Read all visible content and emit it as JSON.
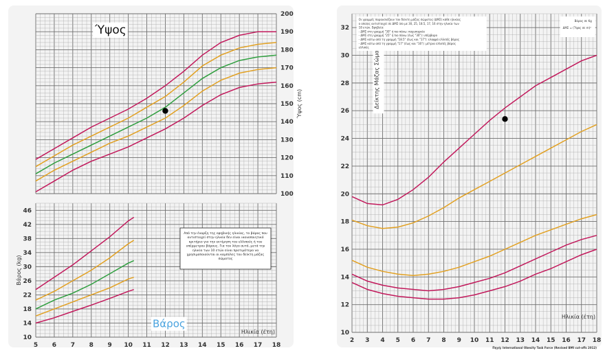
{
  "chart_data": [
    {
      "type": "line",
      "title": "Ύψος",
      "ylabel": "Ύψος (cm)",
      "xlim": [
        5,
        18
      ],
      "ylim": [
        100,
        200
      ],
      "x": [
        5,
        6,
        7,
        8,
        9,
        10,
        11,
        12,
        13,
        14,
        15,
        16,
        17,
        18
      ],
      "yticks": [
        100,
        110,
        120,
        130,
        140,
        150,
        160,
        170,
        180,
        190,
        200
      ],
      "series": [
        {
          "color": "#c2185b",
          "values": [
            119,
            125,
            131,
            137,
            142,
            147,
            153,
            160,
            168,
            177,
            184,
            188,
            190,
            190
          ]
        },
        {
          "color": "#e2a020",
          "values": [
            115,
            121,
            127,
            132,
            137,
            142,
            148,
            154,
            162,
            171,
            177,
            181,
            183,
            184
          ]
        },
        {
          "color": "#2e9e3e",
          "values": [
            111,
            117,
            122,
            127,
            132,
            137,
            142,
            148,
            156,
            164,
            170,
            174,
            176,
            177
          ]
        },
        {
          "color": "#e2a020",
          "values": [
            107,
            113,
            118,
            123,
            128,
            132,
            137,
            142,
            149,
            157,
            163,
            167,
            169,
            170
          ]
        },
        {
          "color": "#c2185b",
          "values": [
            101,
            107,
            113,
            118,
            122,
            126,
            131,
            136,
            142,
            149,
            155,
            159,
            161,
            162
          ]
        }
      ],
      "points": [
        {
          "x": 12,
          "y": 146
        }
      ]
    },
    {
      "type": "line",
      "title": "Βάρος",
      "xlabel": "Ηλικία (έτη)",
      "ylabel": "Βάρος (kg)",
      "xlim": [
        5,
        18
      ],
      "ylim": [
        10,
        48
      ],
      "x": [
        5,
        6,
        7,
        8,
        9,
        10,
        10.3
      ],
      "xticks": [
        5,
        6,
        7,
        8,
        9,
        10,
        11,
        12,
        13,
        14,
        15,
        16,
        17,
        18
      ],
      "yticks": [
        10,
        14,
        18,
        22,
        26,
        30,
        34,
        38,
        42,
        46
      ],
      "series": [
        {
          "color": "#c2185b",
          "values": [
            23.5,
            27,
            30.5,
            34.5,
            38.5,
            43,
            44
          ]
        },
        {
          "color": "#e2a020",
          "values": [
            20.5,
            23,
            26,
            29,
            32.5,
            36.5,
            37.5
          ]
        },
        {
          "color": "#2e9e3e",
          "values": [
            18,
            20.5,
            22.5,
            25,
            28,
            31,
            31.7
          ]
        },
        {
          "color": "#e2a020",
          "values": [
            16,
            18,
            20,
            22,
            24,
            26.5,
            27
          ]
        },
        {
          "color": "#c2185b",
          "values": [
            14,
            15.5,
            17.3,
            19.1,
            21,
            23,
            23.5
          ]
        }
      ],
      "note": "Από την έναρξη της εφηβικής ηλικίας, το βάρος που αντιστοιχεί στην ηλικία δεν είναι ικανοποιητικό κριτήριο για την εκτίμηση του ελλιπούς ή του υπέρμετρου βάρους. Για τον λόγο αυτό, μετά την ηλικία των 10 ετών είναι προτιμότερο να χρησιμοποιούνται οι καμπύλες του δείκτη μάζας σώματος"
    },
    {
      "type": "line",
      "ylabel": "Δείκτης Μάζας Σώματος",
      "xlabel": "Ηλικία (έτη)",
      "unit_label": "Βάρος σε Kg",
      "formula_label": "ΔΜΣ = (Ύψος σε m)²",
      "source": "Πηγή: International Obesity Task Force (Revised BMI cut-offs 2012)",
      "xlim": [
        2,
        18
      ],
      "ylim": [
        10,
        33
      ],
      "x": [
        2,
        3,
        4,
        5,
        6,
        7,
        8,
        9,
        10,
        11,
        12,
        13,
        14,
        15,
        16,
        17,
        18
      ],
      "xticks": [
        2,
        3,
        4,
        5,
        6,
        7,
        8,
        9,
        10,
        11,
        12,
        13,
        14,
        15,
        16,
        17,
        18
      ],
      "yticks": [
        10,
        12,
        14,
        16,
        18,
        20,
        22,
        24,
        26,
        28,
        30,
        32
      ],
      "series": [
        {
          "color": "#c2185b",
          "values": [
            19.8,
            19.3,
            19.2,
            19.6,
            20.3,
            21.2,
            22.3,
            23.3,
            24.3,
            25.3,
            26.2,
            27.0,
            27.8,
            28.4,
            29.0,
            29.6,
            30.0
          ]
        },
        {
          "color": "#e2a020",
          "values": [
            18.1,
            17.7,
            17.5,
            17.6,
            17.9,
            18.4,
            19.0,
            19.7,
            20.3,
            20.9,
            21.5,
            22.1,
            22.7,
            23.3,
            23.9,
            24.5,
            25.0
          ]
        },
        {
          "color": "#e2a020",
          "values": [
            15.2,
            14.7,
            14.4,
            14.2,
            14.1,
            14.2,
            14.4,
            14.7,
            15.1,
            15.5,
            16.0,
            16.5,
            17.0,
            17.4,
            17.8,
            18.2,
            18.5
          ]
        },
        {
          "color": "#c2185b",
          "values": [
            14.2,
            13.7,
            13.4,
            13.2,
            13.1,
            13.0,
            13.1,
            13.3,
            13.6,
            13.9,
            14.3,
            14.8,
            15.3,
            15.8,
            16.3,
            16.7,
            17.0
          ]
        },
        {
          "color": "#c2185b",
          "values": [
            13.6,
            13.1,
            12.8,
            12.6,
            12.5,
            12.4,
            12.4,
            12.5,
            12.7,
            13.0,
            13.3,
            13.7,
            14.2,
            14.6,
            15.1,
            15.6,
            16.0
          ]
        }
      ],
      "points": [
        {
          "x": 12,
          "y": 25.4
        }
      ],
      "legend": [
        "Οι γραμμές παρουσιάζουν τον δείκτη μάζας σώματος (ΔΜΣ) κάθε ηλικίας",
        "ο οποίος αντιστοιχεί σε ΔΜΣ ίσο με 30, 25, 18.5, 17, 16 στην ηλικία των",
        "18 ετών. Εφηβεία:",
        "- ΔΜΣ στη γραμμή \"30\" ή πιο πάνω: παχυσαρκία",
        "- ΔΜΣ στη γραμμή \"25\" ή πιο πάνω (έως \"30\"): υπέρβαρο",
        "- ΔΜΣ κάτω από τη γραμμή \"18.5\" (έως και \"17\"): ελαφρά ελλιπές βάρος",
        "- ΔΜΣ κάτω από τη γραμμή \"17\" (έως και \"16\"): μέτρια ελλιπές βάρος",
        "ελλιπές"
      ]
    }
  ]
}
